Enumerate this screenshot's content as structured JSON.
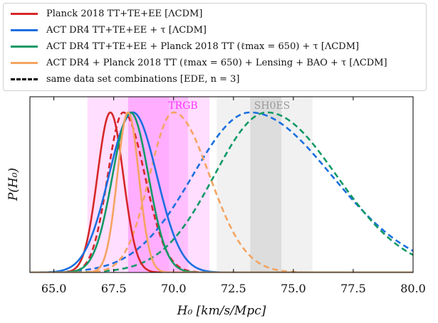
{
  "chart_data": {
    "type": "line",
    "xlabel": "H₀ [km/s/Mpc]",
    "ylabel": "P(H₀)",
    "xlim": [
      64.0,
      80.0
    ],
    "xticks": [
      "65.0",
      "67.5",
      "70.0",
      "72.5",
      "75.0",
      "77.5",
      "80.0"
    ],
    "grid": false,
    "legend_position": "top (above plot)",
    "bands": [
      {
        "name": "TRGB",
        "label": "TRGB",
        "color": "#ff33ff",
        "outer": [
          66.4,
          71.5
        ],
        "inner": [
          68.1,
          69.8
        ],
        "mid": [
          69.8,
          70.6
        ]
      },
      {
        "name": "SH0ES",
        "label": "SH0ES",
        "color": "#aaaaaa",
        "outer": [
          71.8,
          75.8
        ],
        "inner": [
          73.2,
          74.5
        ]
      }
    ],
    "series": [
      {
        "name": "Planck 2018 TT+TE+EE [ΛCDM]",
        "color": "#d62728",
        "style": "solid",
        "mean": 67.36,
        "sigma": 0.54
      },
      {
        "name": "ACT DR4 TT+TE+EE + τ [ΛCDM]",
        "color": "#1a6fdf",
        "style": "solid",
        "mean": 68.3,
        "sigma": 1.0
      },
      {
        "name": "ACT DR4 TT+TE+EE + Planck 2018 TT (ℓmax = 650) + τ [ΛCDM]",
        "color": "#119966",
        "style": "solid",
        "mean": 68.2,
        "sigma": 0.75
      },
      {
        "name": "ACT DR4 + Planck 2018 TT (ℓmax = 650) + Lensing + BAO + τ [ΛCDM]",
        "color": "#f4a460",
        "style": "solid",
        "mean": 68.1,
        "sigma": 0.45
      },
      {
        "name": "same data set combinations [EDE, n = 3]",
        "color": "#000000",
        "style": "dashed",
        "legend_only": true
      }
    ],
    "ede_series": [
      {
        "color": "#d62728",
        "mean": 67.9,
        "sigma_left": 0.65,
        "sigma_right": 0.9
      },
      {
        "color": "#1a6fdf",
        "mean": 73.2,
        "sigma_left": 2.4,
        "sigma_right": 3.4
      },
      {
        "color": "#119966",
        "mean": 73.9,
        "sigma_left": 2.2,
        "sigma_right": 2.9
      },
      {
        "color": "#f4a460",
        "mean": 70.0,
        "sigma_left": 1.0,
        "sigma_right": 1.5
      }
    ]
  }
}
